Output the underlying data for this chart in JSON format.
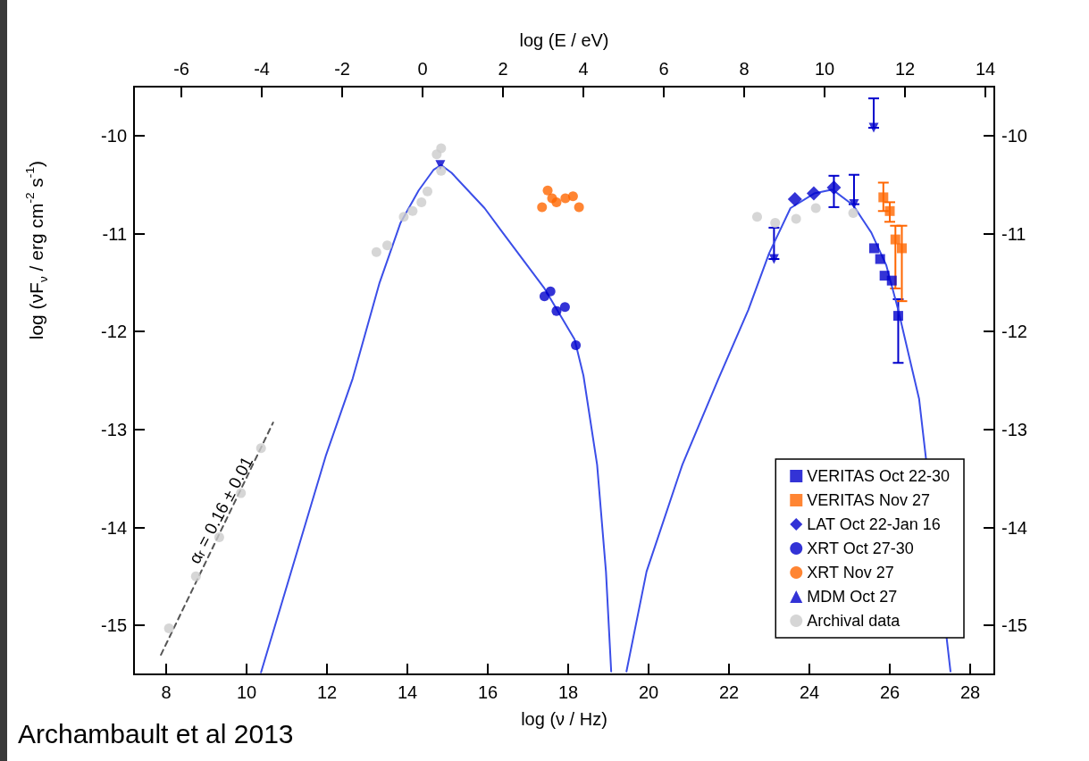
{
  "chart_data": {
    "type": "scatter",
    "xlabel": "log (ν / Hz)",
    "x2label": "log (E / eV)",
    "ylabel": "log (νF$_{ν}$ / erg cm$^{-2}$ s$^{-1}$)",
    "xlim": [
      7.2,
      28.6
    ],
    "xticks": [
      8,
      10,
      12,
      14,
      16,
      18,
      20,
      22,
      24,
      26,
      28
    ],
    "x2lim": [
      -7.18,
      14.22
    ],
    "x2ticks": [
      -6,
      -4,
      -2,
      0,
      2,
      4,
      6,
      8,
      10,
      12,
      14
    ],
    "ylim": [
      -15.5,
      -9.5
    ],
    "yticks": [
      -10,
      -11,
      -12,
      -13,
      -14,
      -15
    ],
    "y2lim": [
      -15.5,
      -9.5
    ],
    "y2ticks": [
      -10,
      -11,
      -12,
      -13,
      -14,
      -15
    ],
    "grid": false,
    "legend": "bottom right",
    "annotations": [
      "αᵣ = 0.16 ± 0.01",
      "Archambault et al 2013"
    ],
    "series": [
      {
        "type": "line",
        "color": "#3b4ee8",
        "marker": "none",
        "line_style": "solid",
        "x": [
          10.36,
          11.97,
          12.64,
          13.31,
          13.83,
          14.28,
          14.65,
          14.84,
          15.1,
          15.92,
          16.37,
          17.41,
          18.16,
          18.38,
          18.72,
          18.94,
          19.07,
          19.25,
          19.45,
          19.95,
          20.84,
          21.74,
          22.48,
          23.0,
          23.53,
          24.12,
          24.57,
          25.09,
          25.54,
          25.91,
          26.21,
          26.73,
          27.51
        ],
        "values": [
          -15.48,
          -13.27,
          -12.48,
          -11.5,
          -10.89,
          -10.56,
          -10.35,
          -10.3,
          -10.38,
          -10.74,
          -10.99,
          -11.56,
          -12.08,
          -12.45,
          -13.36,
          -14.45,
          -15.47,
          null,
          -15.47,
          -14.45,
          -13.36,
          -12.48,
          -11.78,
          -11.2,
          -10.74,
          -10.59,
          -10.55,
          -10.71,
          -10.99,
          -11.32,
          -11.78,
          -12.69,
          -15.47
        ]
      },
      {
        "type": "line",
        "color": "#555555",
        "marker": "none",
        "line_style": "dashed",
        "x": [
          7.87,
          10.66
        ],
        "values": [
          -15.3,
          -12.93
        ]
      },
      {
        "type": "scatter",
        "color": "#0000cc",
        "marker": "triangle",
        "x": [
          23.12,
          25.11,
          25.6
        ],
        "values": [
          -11.26,
          -10.7,
          -9.92
        ],
        "errors": [
          [
            -11.26,
            -10.94
          ],
          [
            -10.7,
            -10.4
          ],
          [
            -9.92,
            -9.62
          ]
        ]
      },
      {
        "name": "VERITAS Oct 22-30",
        "color": "#0000cc",
        "marker": "square",
        "x": [
          25.61,
          25.76,
          25.87,
          26.05,
          26.21
        ],
        "values": [
          -11.15,
          -11.26,
          -11.43,
          -11.48,
          -11.84
        ],
        "errors": [
          null,
          null,
          null,
          null,
          [
            -12.32,
            -11.67
          ]
        ]
      },
      {
        "name": "VERITAS Nov 27",
        "color": "#ff6600",
        "marker": "square",
        "x": [
          25.84,
          26.0,
          26.14,
          26.3
        ],
        "values": [
          -10.63,
          -10.77,
          -11.06,
          -11.15
        ],
        "errors": [
          [
            -10.77,
            -10.48
          ],
          [
            -10.88,
            -10.68
          ],
          [
            -11.56,
            -10.92
          ],
          [
            -11.69,
            -10.92
          ]
        ]
      },
      {
        "name": "LAT Oct 22-Jan 16",
        "color": "#0000cc",
        "marker": "diamond",
        "x": [
          23.64,
          24.11,
          24.61
        ],
        "values": [
          -10.65,
          -10.59,
          -10.53
        ],
        "errors": [
          null,
          null,
          [
            -10.73,
            -10.41
          ]
        ]
      },
      {
        "name": "XRT Oct 27-30",
        "color": "#0000cc",
        "marker": "circle",
        "x": [
          17.41,
          17.56,
          17.71,
          17.92,
          18.19
        ],
        "values": [
          -11.64,
          -11.59,
          -11.79,
          -11.75,
          -12.14
        ]
      },
      {
        "name": "XRT Nov 27",
        "color": "#ff6600",
        "marker": "circle",
        "x": [
          17.35,
          17.49,
          17.6,
          17.71,
          17.93,
          18.12,
          18.27
        ],
        "values": [
          -10.73,
          -10.56,
          -10.64,
          -10.68,
          -10.64,
          -10.62,
          -10.73
        ]
      },
      {
        "name": "MDM Oct 27",
        "color": "#0000cc",
        "marker": "triangle",
        "x": [
          14.82
        ],
        "values": [
          -10.3
        ]
      },
      {
        "name": "Archival data",
        "color": "#cccccc",
        "marker": "circle",
        "x": [
          8.07,
          8.74,
          9.32,
          9.86,
          10.36,
          13.23,
          13.5,
          13.91,
          14.13,
          14.35,
          14.5,
          14.73,
          14.84,
          14.84,
          22.7,
          23.15,
          23.67,
          24.16,
          25.09
        ],
        "values": [
          -15.03,
          -14.5,
          -14.1,
          -13.65,
          -13.19,
          -11.19,
          -11.12,
          -10.83,
          -10.77,
          -10.68,
          -10.57,
          -10.19,
          -10.13,
          -10.36,
          -10.83,
          -10.89,
          -10.85,
          -10.74,
          -10.79
        ]
      }
    ]
  }
}
